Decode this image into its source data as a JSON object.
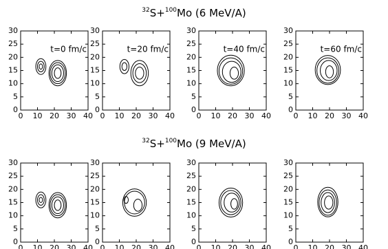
{
  "figure": {
    "titles": [
      [
        "32",
        "S+",
        "100",
        "Mo (6 MeV/A)"
      ],
      [
        "32",
        "S+",
        "100",
        "Mo (9 MeV/A)"
      ]
    ]
  },
  "chart_data": [
    {
      "type": "contour",
      "annotation": "t=0 fm/c",
      "xlim": [
        0,
        40
      ],
      "ylim": [
        0,
        30
      ],
      "xticks": [
        0,
        10,
        20,
        30,
        40
      ],
      "yticks": [
        0,
        5,
        10,
        15,
        20,
        25,
        30
      ],
      "contours": [
        [
          12,
          16.5,
          1,
          1
        ],
        [
          12,
          16.5,
          2,
          2
        ],
        [
          12,
          16.5,
          3,
          3
        ],
        [
          22,
          14,
          2,
          2
        ],
        [
          22,
          14,
          3.5,
          3.2
        ],
        [
          22,
          14,
          4.5,
          4
        ],
        [
          22,
          14,
          5.2,
          4.8
        ]
      ]
    },
    {
      "type": "contour",
      "annotation": "t=20 fm/c",
      "xlim": [
        0,
        40
      ],
      "ylim": [
        0,
        30
      ],
      "xticks": [
        0,
        10,
        20,
        30,
        40
      ],
      "yticks": [
        0,
        5,
        10,
        15,
        20,
        25,
        30
      ],
      "contours": [
        [
          13,
          16.5,
          1.5,
          1.5
        ],
        [
          13,
          16.5,
          2.7,
          2.7
        ],
        [
          22,
          14,
          2.5,
          2.3
        ],
        [
          22,
          14,
          4,
          3.6
        ],
        [
          22,
          14,
          5.2,
          4.8
        ]
      ]
    },
    {
      "type": "contour",
      "annotation": "t=40 fm/c",
      "xlim": [
        0,
        40
      ],
      "ylim": [
        0,
        30
      ],
      "xticks": [
        0,
        10,
        20,
        30,
        40
      ],
      "yticks": [
        0,
        5,
        10,
        15,
        20,
        25,
        30
      ],
      "contours": [
        [
          21,
          14,
          2.5,
          2.3
        ],
        [
          19.5,
          14.5,
          5.5,
          4
        ],
        [
          19,
          14.8,
          7,
          5
        ],
        [
          19,
          15,
          8,
          5.8
        ]
      ]
    },
    {
      "type": "contour",
      "annotation": "t=60 fm/c",
      "xlim": [
        0,
        40
      ],
      "ylim": [
        0,
        30
      ],
      "xticks": [
        0,
        10,
        20,
        30,
        40
      ],
      "yticks": [
        0,
        5,
        10,
        15,
        20,
        25,
        30
      ],
      "contours": [
        [
          20,
          14.5,
          2.3,
          2.3
        ],
        [
          19.5,
          15,
          5,
          3.8
        ],
        [
          19,
          15,
          6.5,
          4.8
        ],
        [
          19,
          15.2,
          7.5,
          5.5
        ]
      ]
    },
    {
      "type": "contour",
      "xlim": [
        0,
        40
      ],
      "ylim": [
        0,
        30
      ],
      "xticks": [
        0,
        10,
        20,
        30,
        40
      ],
      "yticks": [
        0,
        5,
        10,
        15,
        20,
        25,
        30
      ],
      "contours": [
        [
          12,
          16,
          1,
          1
        ],
        [
          12,
          16,
          2,
          2
        ],
        [
          12,
          16,
          3,
          3
        ],
        [
          22,
          14,
          2,
          2
        ],
        [
          22,
          14,
          3.5,
          3.2
        ],
        [
          22,
          14,
          4.5,
          4
        ],
        [
          22,
          14,
          5.2,
          4.8
        ]
      ]
    },
    {
      "type": "contour",
      "xlim": [
        0,
        40
      ],
      "ylim": [
        0,
        30
      ],
      "xticks": [
        0,
        10,
        20,
        30,
        40
      ],
      "yticks": [
        0,
        5,
        10,
        15,
        20,
        25,
        30
      ],
      "contours": [
        [
          14,
          16,
          1.3,
          1.3
        ],
        [
          21,
          14,
          2.5,
          2.3
        ],
        [
          19,
          15,
          6,
          4.3
        ],
        [
          19,
          15,
          7,
          5.2
        ]
      ]
    },
    {
      "type": "contour",
      "xlim": [
        0,
        40
      ],
      "ylim": [
        0,
        30
      ],
      "xticks": [
        0,
        10,
        20,
        30,
        40
      ],
      "yticks": [
        0,
        5,
        10,
        15,
        20,
        25,
        30
      ],
      "contours": [
        [
          21,
          14.5,
          2,
          2
        ],
        [
          19.5,
          15,
          4.5,
          3.6
        ],
        [
          19,
          15,
          6,
          4.6
        ],
        [
          19,
          15,
          7,
          5.5
        ]
      ]
    },
    {
      "type": "contour",
      "xlim": [
        0,
        40
      ],
      "ylim": [
        0,
        30
      ],
      "xticks": [
        0,
        10,
        20,
        30,
        40
      ],
      "yticks": [
        0,
        5,
        10,
        15,
        20,
        25,
        30
      ],
      "contours": [
        [
          19.5,
          15,
          2.5,
          2.5
        ],
        [
          19,
          15,
          4,
          3.8
        ],
        [
          19,
          15,
          5.2,
          4.8
        ],
        [
          19,
          15.2,
          6,
          5.6
        ]
      ]
    }
  ]
}
